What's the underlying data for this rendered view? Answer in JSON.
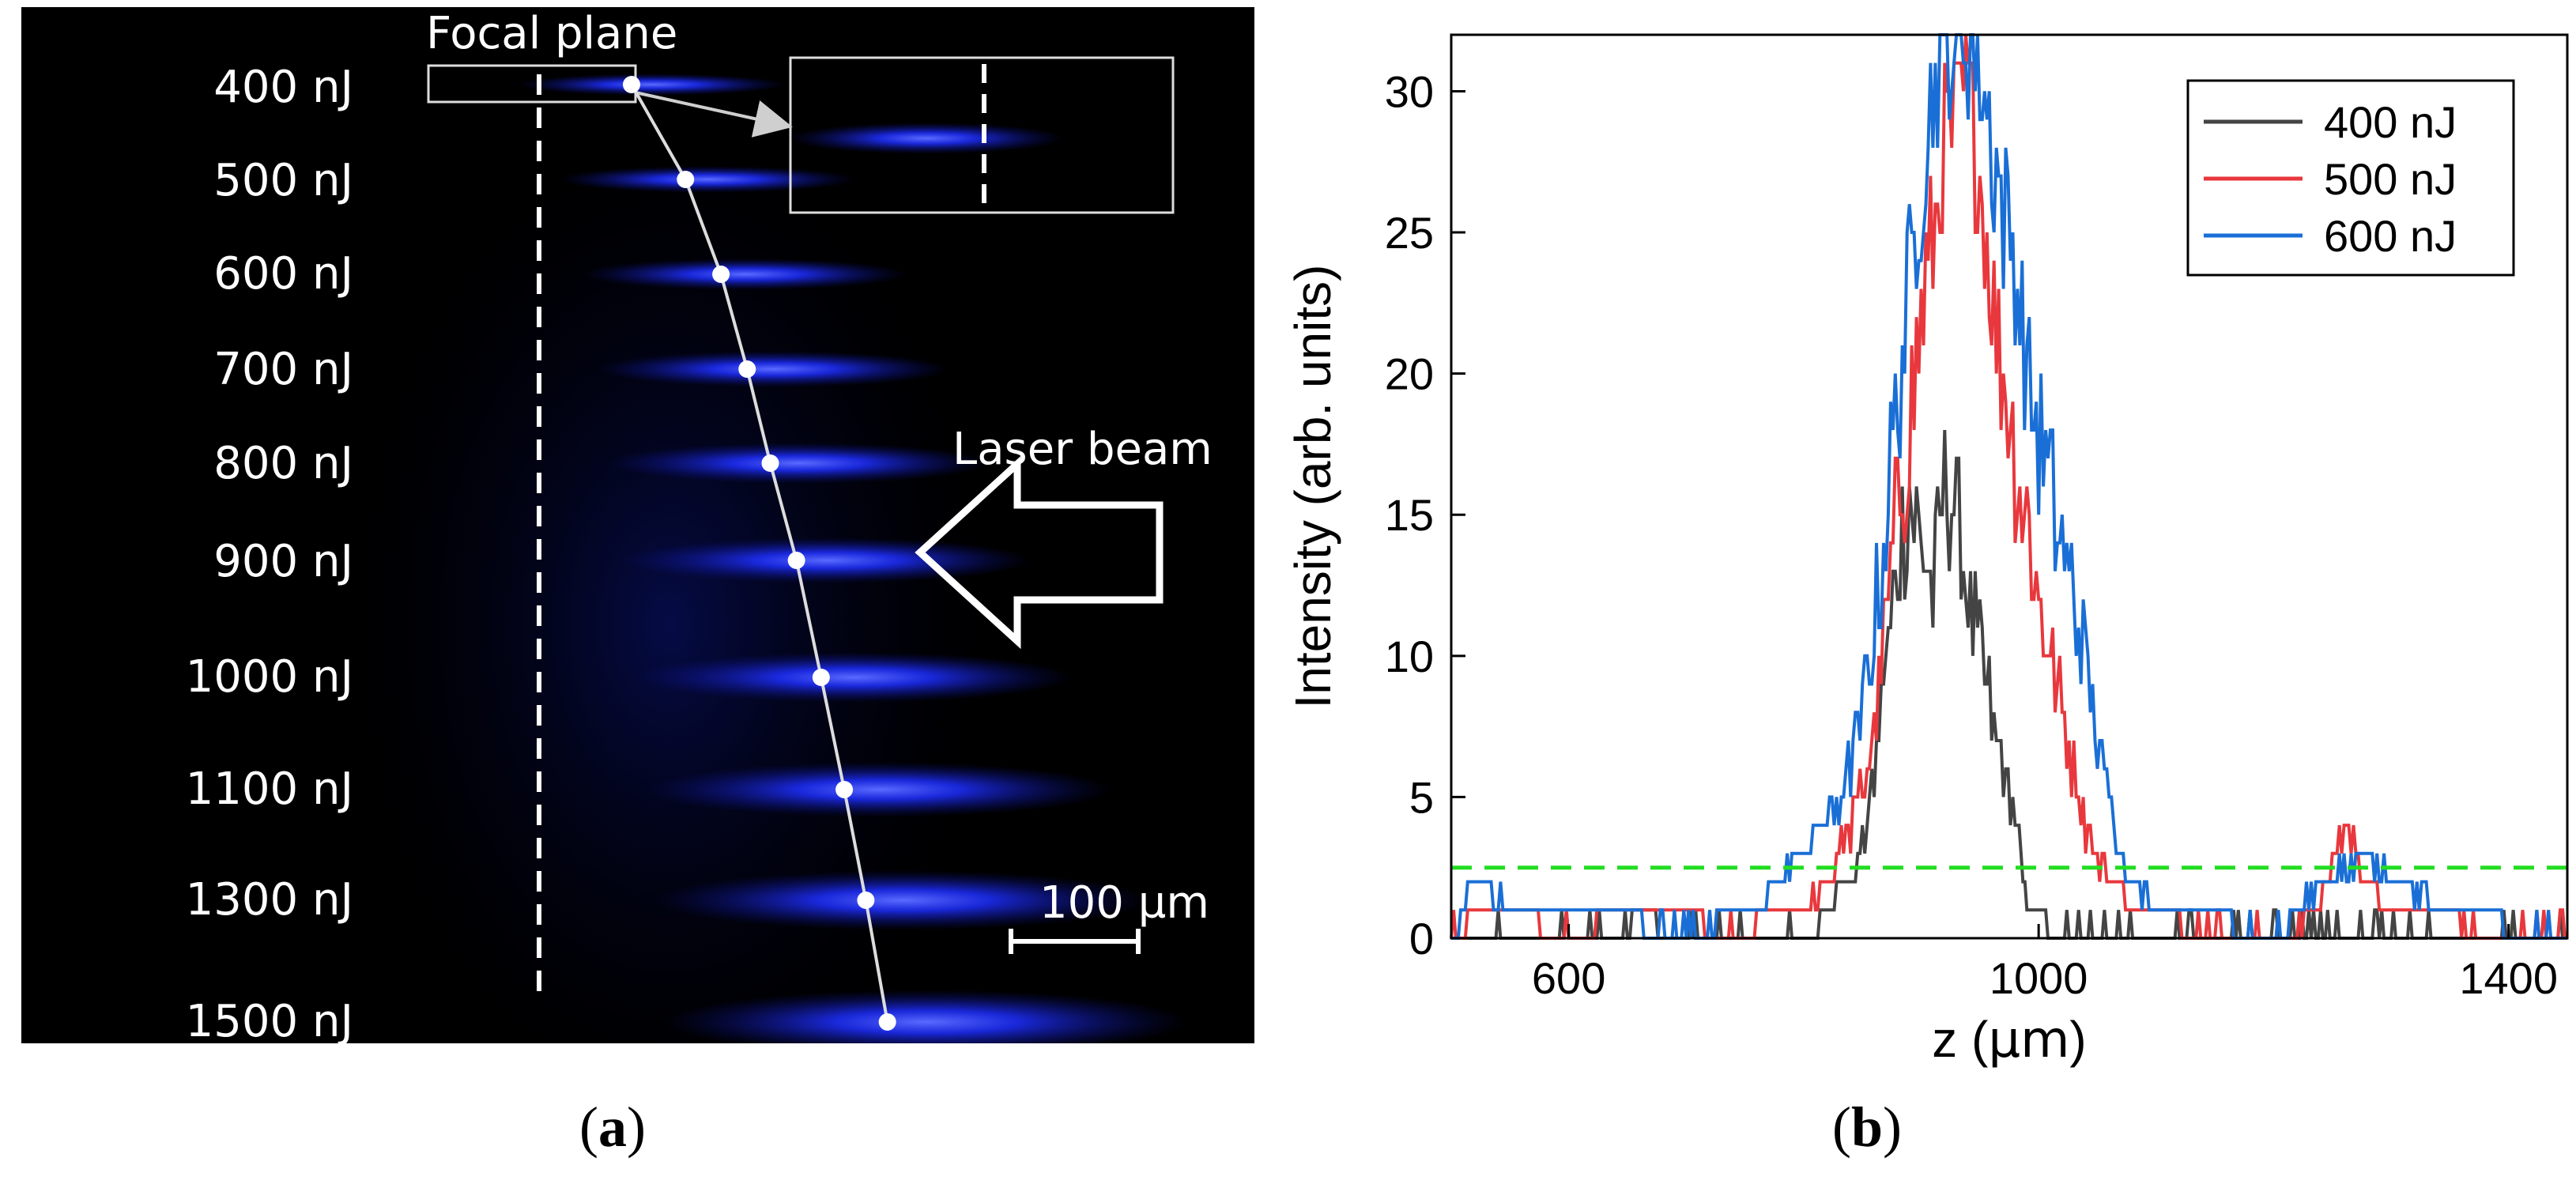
{
  "panel_a": {
    "energy_labels": [
      "400 nJ",
      "500 nJ",
      "600 nJ",
      "700 nJ",
      "800 nJ",
      "900 nJ",
      "1000 nJ",
      "1100 nJ",
      "1300 nJ",
      "1500 nJ"
    ],
    "focal_plane_label": "Focal plane",
    "laser_beam_label": "Laser beam",
    "scale_bar_label": "100 µm",
    "track_color": "#1e2fff",
    "pulse_energies_nJ": [
      400,
      500,
      600,
      700,
      800,
      900,
      1000,
      1100,
      1300,
      1500
    ],
    "filament_start_offset_um": [
      60,
      95,
      118,
      135,
      150,
      167,
      183,
      198,
      212,
      226
    ]
  },
  "chart_data": {
    "type": "line",
    "title": "",
    "xlabel_prefix": "z (",
    "xlabel_unit": "µm",
    "xlabel_suffix": ")",
    "ylabel": "Intensity (arb. units)",
    "xlim": [
      500,
      1450
    ],
    "ylim": [
      0,
      32
    ],
    "xticks": [
      600,
      1000,
      1400
    ],
    "yticks": [
      0,
      5,
      10,
      15,
      20,
      25,
      30
    ],
    "grid": false,
    "legend_position": "top-right",
    "threshold": {
      "y": 2.5,
      "color": "#22dd22",
      "style": "dashed"
    },
    "series": [
      {
        "name": "400 nJ",
        "color": "#444444",
        "x": [
          500,
          640,
          660,
          700,
          760,
          800,
          820,
          840,
          850,
          860,
          870,
          880,
          890,
          900,
          910,
          920,
          930,
          940,
          950,
          960,
          970,
          980,
          985,
          990,
          1000,
          1010,
          1020,
          1100,
          1300,
          1450
        ],
        "y": [
          0,
          0,
          1,
          0,
          0,
          0,
          1,
          2,
          3,
          6,
          10,
          13,
          16,
          14,
          12,
          16,
          15,
          12,
          10,
          8,
          6,
          4,
          3,
          1,
          1,
          0.5,
          0,
          0,
          0,
          0
        ]
      },
      {
        "name": "500 nJ",
        "color": "#e8383d",
        "x": [
          500,
          520,
          560,
          600,
          640,
          700,
          740,
          770,
          800,
          820,
          840,
          860,
          870,
          880,
          890,
          900,
          910,
          920,
          930,
          940,
          950,
          960,
          970,
          980,
          990,
          1000,
          1010,
          1020,
          1030,
          1040,
          1050,
          1060,
          1080,
          1100,
          1140,
          1200,
          1240,
          1260,
          1280,
          1300,
          1450
        ],
        "y": [
          0,
          1,
          1,
          0,
          1,
          1,
          0,
          1,
          1,
          2,
          4,
          7,
          11,
          15,
          18,
          22,
          25,
          28,
          29,
          30,
          27,
          23,
          20,
          17,
          15,
          12,
          10,
          8,
          6,
          4,
          3,
          2,
          1,
          1,
          0,
          0,
          1,
          4,
          2,
          1,
          0
        ]
      },
      {
        "name": "600 nJ",
        "color": "#1a6fd6",
        "x": [
          500,
          520,
          560,
          600,
          640,
          700,
          740,
          760,
          780,
          800,
          820,
          830,
          840,
          850,
          860,
          870,
          880,
          890,
          900,
          910,
          920,
          930,
          940,
          950,
          960,
          970,
          980,
          990,
          1000,
          1010,
          1020,
          1030,
          1040,
          1050,
          1060,
          1070,
          1080,
          1100,
          1140,
          1200,
          1240,
          1280,
          1300,
          1360,
          1450
        ],
        "y": [
          0,
          2,
          1,
          1,
          1,
          0,
          1,
          1,
          2,
          3,
          4,
          5,
          6,
          8,
          11,
          15,
          19,
          23,
          27,
          30,
          32,
          32,
          32,
          31,
          28,
          26,
          24,
          20,
          18,
          16,
          14,
          12,
          10,
          7,
          5,
          3,
          2,
          1,
          1,
          0,
          2,
          3,
          2,
          1,
          0
        ]
      }
    ]
  },
  "captions": {
    "a": "a",
    "b": "b"
  }
}
